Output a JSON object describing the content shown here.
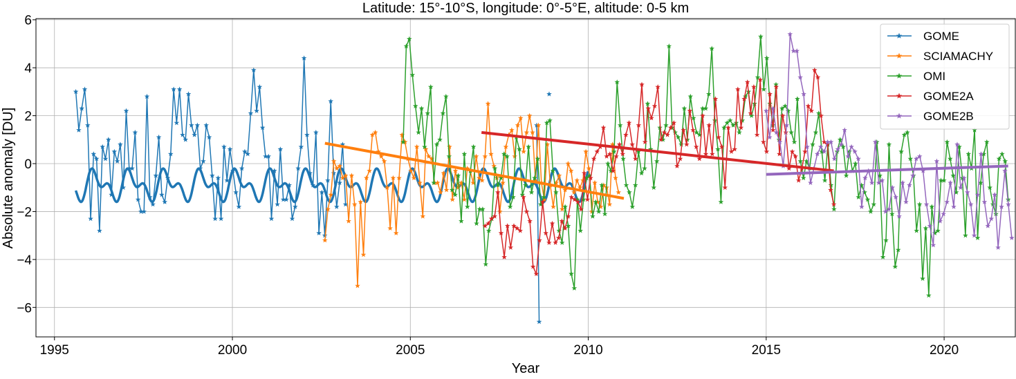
{
  "chart_data": {
    "type": "line",
    "title": "Latitude: 15°-10°S, longitude: 0°-5°E, altitude: 0-5 km",
    "xlabel": "Year",
    "ylabel": "Absolute anomaly [DU]",
    "xlim": [
      1994.48,
      2022.0
    ],
    "ylim": [
      -7.23,
      6.05
    ],
    "xticks": [
      1995,
      2000,
      2005,
      2010,
      2015,
      2020
    ],
    "xtick_labels": [
      "1995",
      "2000",
      "2005",
      "2010",
      "2015",
      "2020"
    ],
    "yticks": [
      -6,
      -4,
      -2,
      0,
      2,
      4,
      6
    ],
    "ytick_labels": [
      "−6",
      "−4",
      "−2",
      "0",
      "2",
      "4",
      "6"
    ],
    "grid": true,
    "legend_position": "top-right",
    "series": [
      {
        "name": "GOME",
        "color": "#1f77b4",
        "legend": true,
        "x_start": 1995.6,
        "x_end": 2003.18,
        "values": [
          3.0,
          1.4,
          2.3,
          3.1,
          1.6,
          -2.3,
          0.4,
          0.2,
          -2.8,
          0.7,
          0.2,
          1.0,
          -1.3,
          0.5,
          0.1,
          0.8,
          -1.0,
          2.2,
          -0.2,
          -0.2,
          1.3,
          -1.5,
          -2.0,
          -2.0,
          2.8,
          -1.4,
          -1.7,
          -0.5,
          1.1,
          -1.3,
          -1.6,
          -0.6,
          0.4,
          3.1,
          1.7,
          3.1,
          1.2,
          1.0,
          2.9,
          1.6,
          1.2,
          1.6,
          -0.2,
          0.1,
          1.6,
          1.1,
          -0.5,
          -2.3,
          -0.6,
          -2.3,
          0.7,
          -0.7,
          0.6,
          -0.3,
          -1.2,
          -1.8,
          -0.2,
          0.5,
          0.4,
          2.1,
          3.9,
          2.2,
          3.2,
          1.5,
          0.3,
          0.3,
          -2.3,
          -0.3,
          -1.7,
          0.6,
          -1.5,
          -1.5,
          -0.9,
          -2.3,
          -1.8,
          -0.2,
          0.7,
          4.4,
          1.2,
          -0.4,
          -0.9,
          1.3,
          -2.9,
          -1.2,
          -3.0,
          -0.7,
          2.6,
          -0.4,
          -1.8,
          -0.8,
          0.8,
          -1.7
        ]
      },
      {
        "name": "GOME",
        "color": "#1f77b4",
        "legend": false,
        "x_start": 2008.55,
        "x_end": 2008.62,
        "values": [
          1.6,
          -6.6
        ]
      },
      {
        "name": "GOME",
        "color": "#1f77b4",
        "legend": false,
        "x_start": 2008.9,
        "x_end": 2008.9,
        "values": [
          2.9
        ]
      },
      {
        "name": "SCIAMACHY",
        "color": "#ff7f0e",
        "legend": true,
        "x_start": 2002.6,
        "x_end": 2010.85,
        "values": [
          -3.2,
          -1.9,
          -1.3,
          0.1,
          -0.2,
          -0.1,
          -0.6,
          -0.5,
          -2.4,
          -0.5,
          -1.7,
          -5.1,
          -1.6,
          -3.8,
          -0.6,
          -0.3,
          1.2,
          1.3,
          0.5,
          0.3,
          0.1,
          -1.0,
          -2.7,
          -0.6,
          -2.9,
          -0.6,
          1.2,
          0.9,
          0.2,
          -0.3,
          -0.6,
          0.7,
          -0.8,
          -2.2,
          0.6,
          0.3,
          0.2,
          -0.8,
          -0.8,
          -1.2,
          -0.4,
          -1.1,
          0.7,
          -1.5,
          -0.3,
          -1.0,
          -0.8,
          -1.5,
          -0.2,
          -0.3,
          -0.8,
          0.3,
          -0.6,
          -0.7,
          0.3,
          2.5,
          0.4,
          -0.1,
          -0.6,
          -2.0,
          -0.8,
          0.7,
          1.2,
          1.4,
          0.3,
          1.6,
          1.9,
          0.5,
          1.3,
          2.0,
          1.3,
          -0.7,
          1.6,
          -0.8,
          -1.5,
          0.8,
          -0.9,
          -1.8,
          -0.8,
          -0.5,
          -1.9,
          -1.1,
          0.0,
          -0.3,
          -1.2,
          -0.7,
          -1.0,
          -0.7,
          0.5,
          -0.2,
          -2.0,
          -0.8,
          -1.6,
          -1.8,
          -0.9,
          -1.0,
          -1.7,
          0.8,
          -0.6,
          -1.2
        ]
      },
      {
        "name": "OMI",
        "color": "#2ca02c",
        "legend": true,
        "x_start": 2004.8,
        "x_end": 2021.8,
        "values": [
          0.9,
          4.9,
          5.2,
          3.7,
          2.4,
          1.3,
          2.3,
          0.7,
          2.1,
          3.2,
          -0.8,
          0.8,
          1.0,
          2.1,
          2.8,
          0.3,
          -1.1,
          -1.3,
          -0.5,
          -2.4,
          0.4,
          -1.8,
          -0.3,
          0.7,
          -2.5,
          -1.9,
          -1.9,
          -4.2,
          -2.8,
          -2.3,
          -0.2,
          -0.9,
          -0.6,
          0.4,
          0.3,
          -1.8,
          -1.4,
          1.1,
          0.6,
          -1.3,
          -0.9,
          0.7,
          -1.2,
          -0.6,
          0.2,
          -1.7,
          -1.4,
          1.7,
          1.8,
          -0.3,
          -1.2,
          -2.8,
          -3.3,
          -1.8,
          -2.6,
          -4.6,
          -5.2,
          -1.5,
          -2.8,
          -1.5,
          -0.6,
          -0.5,
          -2.2,
          -1.6,
          -2.0,
          -0.9,
          -2.1,
          0.0,
          -0.3,
          0.5,
          3.4,
          1.6,
          0.2,
          -0.9,
          -1.2,
          -1.8,
          -0.9,
          0.5,
          -0.4,
          -0.2,
          2.5,
          0.6,
          -1.0,
          0.1,
          1.5,
          1.0,
          1.6,
          4.9,
          1.5,
          1.3,
          1.1,
          0.8,
          2.3,
          1.0,
          2.8,
          1.9,
          1.3,
          1.2,
          2.3,
          2.3,
          2.9,
          4.8,
          1.8,
          0.6,
          -1.6,
          1.5,
          1.7,
          1.8,
          1.6,
          1.7,
          1.3,
          1.8,
          2.8,
          3.0,
          2.0,
          2.5,
          3.6,
          5.3,
          3.1,
          4.4,
          2.5,
          1.6,
          3.3,
          1.0,
          2.3,
          2.4,
          2.2,
          1.3,
          0.9,
          2.7,
          0.1,
          -0.6,
          0.1,
          -0.2,
          0.8,
          1.3,
          2.1,
          0.5,
          -0.7,
          0.8,
          -0.9,
          -1.9,
          0.5,
          1.0,
          0.7,
          -0.5,
          0.5,
          -0.3,
          0.0,
          -1.4,
          -0.9,
          -1.2,
          -1.5,
          -2.0,
          -1.7,
          0.9,
          -0.5,
          -3.9,
          -3.2,
          0.8,
          -2.1,
          -4.3,
          -3.6,
          0.5,
          1.2,
          1.3,
          0.2,
          -0.5,
          -2.8,
          -1.7,
          -4.8,
          -2.7,
          -5.5,
          -1.8,
          -2.9,
          -2.8,
          -0.7,
          -0.7,
          0.9,
          0.2,
          -0.5,
          -1.2,
          0.7,
          -0.6,
          -3.0,
          0.4,
          -0.2,
          1.4,
          -3.1,
          -0.8,
          0.4,
          0.9,
          -1.0,
          -1.7,
          -2.1,
          0.2,
          0.4,
          0.1,
          -1.5
        ]
      },
      {
        "name": "GOME2A",
        "color": "#d62728",
        "legend": true,
        "x_start": 2007.1,
        "x_end": 2016.9,
        "values": [
          -2.6,
          -2.5,
          -2.3,
          -2.2,
          -1.2,
          -2.9,
          -3.9,
          -2.6,
          -3.5,
          -2.6,
          -2.7,
          -2.8,
          -1.4,
          -2.0,
          -2.4,
          -4.3,
          -4.6,
          -3.2,
          -1.6,
          -2.9,
          -3.3,
          -2.5,
          -3.3,
          -3.1,
          -2.4,
          -2.7,
          -2.2,
          -1.4,
          -1.5,
          -1.6,
          -1.9,
          -0.4,
          -1.5,
          -0.6,
          0.2,
          0.5,
          0.7,
          1.5,
          0.3,
          0.4,
          -0.3,
          0.3,
          0.8,
          0.4,
          1.2,
          1.7,
          0.8,
          0.2,
          1.6,
          3.3,
          0.9,
          2.3,
          1.9,
          2.4,
          3.2,
          1.0,
          1.3,
          1.2,
          1.5,
          1.7,
          -0.1,
          0.2,
          1.4,
          0.8,
          2.2,
          1.4,
          0.7,
          0.2,
          2.0,
          0.4,
          1.6,
          0.4,
          2.7,
          1.1,
          0.7,
          -1.0,
          1.5,
          0.5,
          0.6,
          3.1,
          1.5,
          2.7,
          3.4,
          2.1,
          3.2,
          1.2,
          3.5,
          0.9,
          0.5,
          2.9,
          1.4,
          3.2,
          0.4,
          2.0,
          1.3,
          -0.2,
          0.5,
          0.3,
          -0.7,
          -0.2,
          0.5,
          2.4,
          2.2,
          3.9,
          3.6,
          2.0,
          0.9,
          0.8,
          -1.1,
          -1.7
        ]
      },
      {
        "name": "GOME2B",
        "color": "#9467bd",
        "legend": true,
        "x_start": 2015.0,
        "x_end": 2021.9,
        "values": [
          2.2,
          1.1,
          2.3,
          1.3,
          0.9,
          -0.1,
          1.6,
          5.4,
          4.7,
          4.7,
          3.6,
          2.9,
          0.7,
          -0.8,
          -0.2,
          0.4,
          0.7,
          0.5,
          0.9,
          0.9,
          0.2,
          0.6,
          0.8,
          1.4,
          0.3,
          0.7,
          0.5,
          0.2,
          -1.8,
          -0.6,
          -0.3,
          -0.8,
          0.9,
          -0.8,
          -0.7,
          -2.0,
          -1.9,
          -1.0,
          -1.4,
          -2.2,
          -0.8,
          -1.6,
          -0.9,
          -0.5,
          0.2,
          0.3,
          -0.3,
          -1.7,
          -2.6,
          -3.4,
          0.1,
          -2.4,
          -2.1,
          -1.6,
          -0.8,
          -1.8,
          0.8,
          -1.0,
          -0.6,
          -1.2,
          -1.7,
          -3.0,
          -1.3,
          0.4,
          -1.6,
          -2.6,
          -2.3,
          -1.3,
          -3.5,
          -1.8,
          -0.3,
          -1.7,
          -3.1
        ]
      }
    ],
    "seasonal_fit": {
      "color": "#1f77b4",
      "x_range": [
        1995.6,
        2010.0
      ],
      "mean": -0.9,
      "harmonics": [
        {
          "period": 1.0,
          "amp": 0.45,
          "phase": 0.15
        },
        {
          "period": 0.5,
          "amp": 0.35,
          "phase": 0.05
        }
      ]
    },
    "trend_lines": [
      {
        "name": "SCIAMACHY trend",
        "color": "#ff7f0e",
        "x": [
          2002.6,
          2011.0
        ],
        "y": [
          0.85,
          -1.45
        ]
      },
      {
        "name": "GOME2A trend",
        "color": "#d62728",
        "x": [
          2007.0,
          2016.9
        ],
        "y": [
          1.3,
          -0.3
        ]
      },
      {
        "name": "GOME2B trend",
        "color": "#9467bd",
        "x": [
          2015.0,
          2021.8
        ],
        "y": [
          -0.45,
          -0.1
        ]
      }
    ]
  }
}
